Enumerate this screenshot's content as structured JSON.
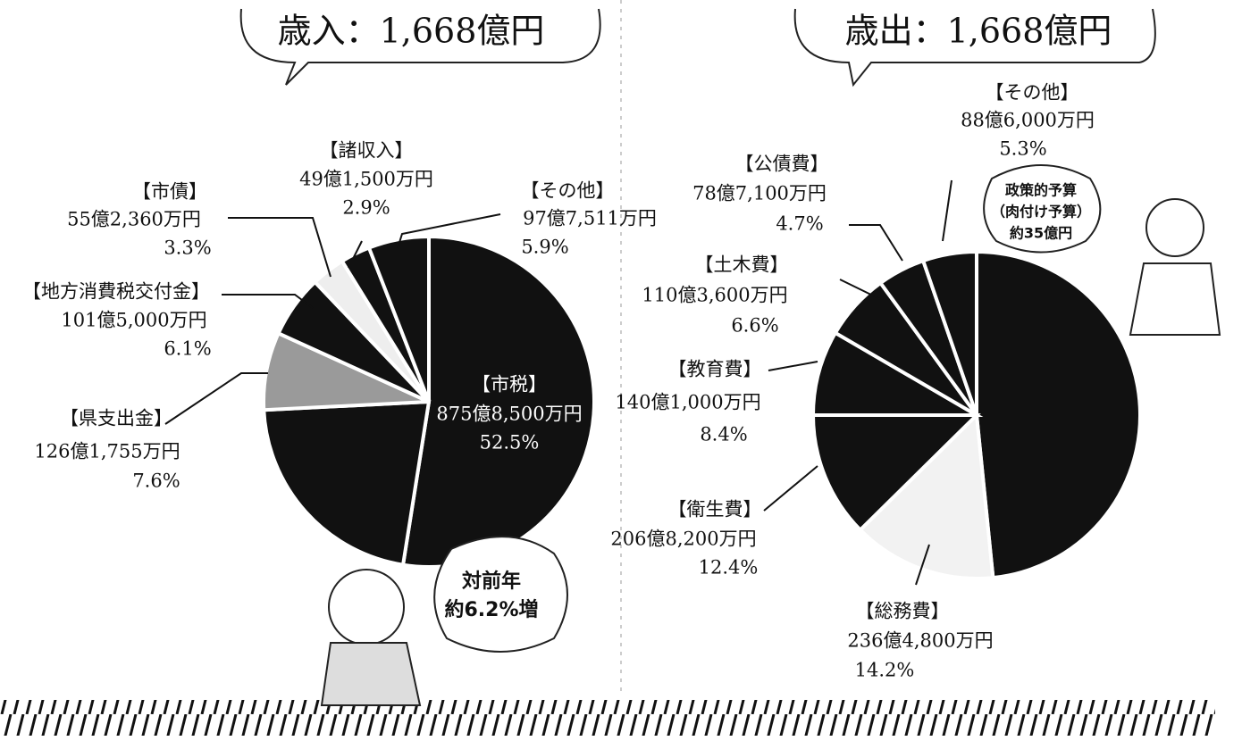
{
  "chart_data": [
    {
      "type": "pie",
      "title": "歳入：1,668億円",
      "categories": [
        "【市税】",
        null,
        "【県支出金】",
        "【地方消費税交付金】",
        "【市債】",
        "【諸収入】",
        "【その他】"
      ],
      "amount_labels": [
        "875億8,500万円",
        null,
        "126億1,755万円",
        "101億5,000万円",
        "55億2,360万円",
        "49億1,500万円",
        "97億7,511万円"
      ],
      "values": [
        52.5,
        21.7,
        7.6,
        6.1,
        3.3,
        2.9,
        5.9
      ],
      "value_labels": [
        "52.5%",
        null,
        "7.6%",
        "6.1%",
        "3.3%",
        "2.9%",
        "5.9%"
      ],
      "colors": [
        "#111111",
        "#111111",
        "#9a9a9a",
        "#111111",
        "#eeeeee",
        "#111111",
        "#111111"
      ],
      "annotation": [
        "対前年",
        "約6.2%増"
      ]
    },
    {
      "type": "pie",
      "title": "歳出：1,668億円",
      "categories": [
        null,
        "【総務費】",
        "【衛生費】",
        "【教育費】",
        "【土木費】",
        "【公債費】",
        "【その他】"
      ],
      "amount_labels": [
        null,
        "236億4,800万円",
        "206億8,200万円",
        "140億1,000万円",
        "110億3,600万円",
        "78億7,100万円",
        "88億6,000万円"
      ],
      "values": [
        48.4,
        14.2,
        12.4,
        8.4,
        6.6,
        4.7,
        5.3
      ],
      "value_labels": [
        null,
        "14.2%",
        "12.4%",
        "8.4%",
        "6.6%",
        "4.7%",
        "5.3%"
      ],
      "colors": [
        "#111111",
        "#f2f2f2",
        "#111111",
        "#111111",
        "#111111",
        "#111111",
        "#111111"
      ],
      "annotation": [
        "政策的予算",
        "（肉付け予算）",
        "約35億円"
      ]
    }
  ]
}
